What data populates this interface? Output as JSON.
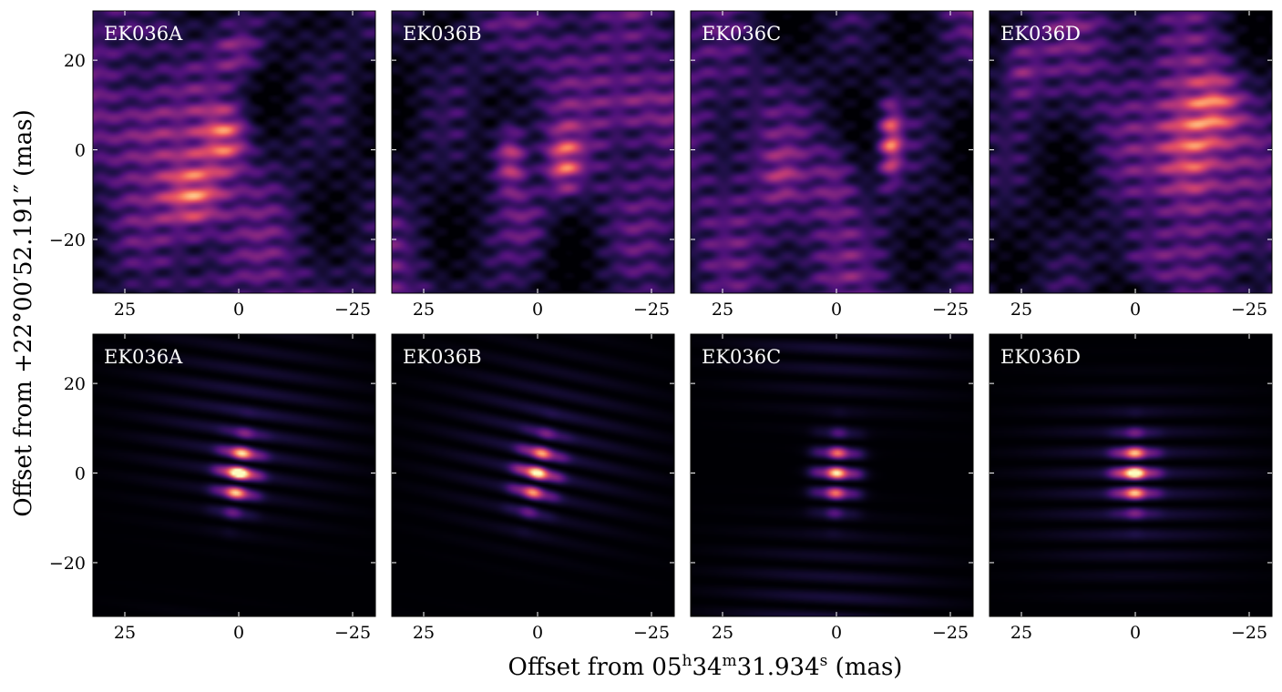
{
  "figure": {
    "xlabel_main": "Offset from 05",
    "xlabel_h": "h",
    "xlabel_mid1": "34",
    "xlabel_m": "m",
    "xlabel_mid2": "31.934",
    "xlabel_s": "s",
    "xlabel_unit": " (mas)",
    "ylabel": "Offset from +22°00′52.191″ (mas)"
  },
  "colormap": "magma",
  "chart_data": {
    "type": "heatmap",
    "rows": 2,
    "cols": 4,
    "xlim": [
      32,
      -30
    ],
    "ylim": [
      -32,
      31
    ],
    "xticks": [
      25,
      0,
      -25
    ],
    "xtick_labels": [
      "25",
      "0",
      "−25"
    ],
    "yticks": [
      20,
      0,
      -20
    ],
    "ytick_labels": [
      "20",
      "0",
      "−20"
    ],
    "panels": [
      {
        "label": "EK036A",
        "row": 0,
        "map": "dirty"
      },
      {
        "label": "EK036B",
        "row": 0,
        "map": "dirty"
      },
      {
        "label": "EK036C",
        "row": 0,
        "map": "dirty"
      },
      {
        "label": "EK036D",
        "row": 0,
        "map": "dirty"
      },
      {
        "label": "EK036A",
        "row": 1,
        "map": "beam"
      },
      {
        "label": "EK036B",
        "row": 1,
        "map": "beam"
      },
      {
        "label": "EK036C",
        "row": 1,
        "map": "beam"
      },
      {
        "label": "EK036D",
        "row": 1,
        "map": "beam"
      }
    ]
  }
}
